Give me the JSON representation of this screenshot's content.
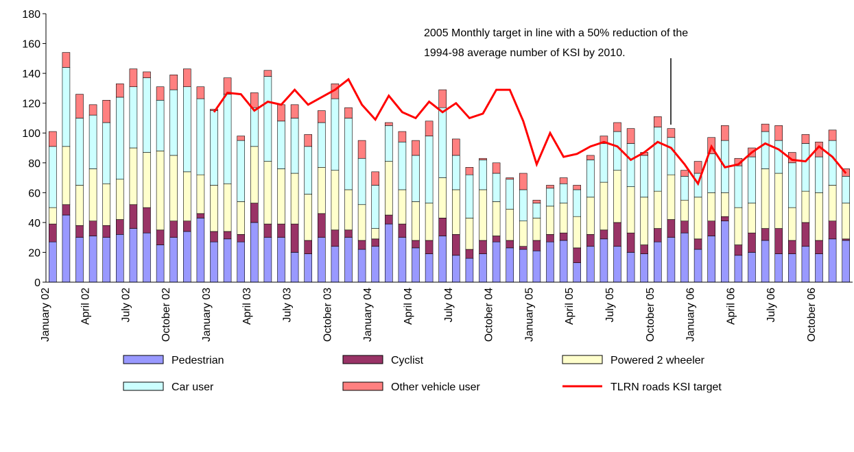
{
  "chart_data": {
    "type": "bar",
    "stacked": true,
    "annotation": [
      "2005 Monthly target in line with a 50% reduction of the",
      "1994-98 average number of  KSI by 2010."
    ],
    "categories": [
      "January 02",
      null,
      null,
      "April 02",
      null,
      null,
      "July 02",
      null,
      null,
      "October 02",
      null,
      null,
      "January 03",
      null,
      null,
      "April 03",
      null,
      null,
      "July 03",
      null,
      null,
      "October 03",
      null,
      null,
      "January 04",
      null,
      null,
      "April 04",
      null,
      null,
      "July 04",
      null,
      null,
      "October 04",
      null,
      null,
      "January 05",
      null,
      null,
      "April 05",
      null,
      null,
      "July 05",
      null,
      null,
      "October 05",
      null,
      null,
      "January 06",
      null,
      null,
      "April 06",
      null,
      null,
      "July 06",
      null,
      null,
      "October 06",
      null,
      null
    ],
    "series": [
      {
        "name": "Pedestrian",
        "color": "#9999ff",
        "values": [
          27,
          45,
          30,
          31,
          30,
          32,
          36,
          33,
          25,
          30,
          34,
          43,
          27,
          29,
          27,
          40,
          30,
          30,
          20,
          19,
          30,
          24,
          30,
          22,
          24,
          39,
          30,
          23,
          19,
          31,
          18,
          16,
          19,
          27,
          23,
          22,
          21,
          27,
          28,
          13,
          24,
          29,
          24,
          20,
          19,
          27,
          30,
          33,
          22,
          31,
          41,
          18,
          20,
          28,
          19,
          19,
          24,
          19,
          29,
          28
        ]
      },
      {
        "name": "Cyclist",
        "color": "#993366",
        "values": [
          12,
          7,
          8,
          10,
          8,
          10,
          16,
          17,
          10,
          11,
          7,
          3,
          7,
          5,
          5,
          13,
          9,
          9,
          19,
          9,
          16,
          11,
          5,
          6,
          5,
          6,
          9,
          5,
          9,
          12,
          14,
          6,
          9,
          4,
          5,
          2,
          7,
          5,
          5,
          10,
          8,
          6,
          16,
          13,
          6,
          9,
          12,
          8,
          7,
          10,
          3,
          7,
          13,
          8,
          17,
          9,
          16,
          9,
          12,
          1
        ]
      },
      {
        "name": "Powered 2 wheeler",
        "color": "#ffffcc",
        "values": [
          11,
          39,
          27,
          35,
          28,
          27,
          38,
          37,
          53,
          44,
          33,
          26,
          31,
          32,
          22,
          38,
          42,
          37,
          34,
          31,
          31,
          40,
          27,
          24,
          7,
          36,
          23,
          26,
          25,
          27,
          30,
          21,
          34,
          23,
          21,
          17,
          15,
          19,
          20,
          21,
          25,
          32,
          35,
          31,
          32,
          25,
          30,
          14,
          28,
          19,
          16,
          25,
          20,
          40,
          37,
          22,
          21,
          32,
          24,
          24
        ]
      },
      {
        "name": "Car user",
        "color": "#ccffff",
        "values": [
          41,
          53,
          45,
          36,
          41,
          55,
          41,
          50,
          34,
          44,
          57,
          51,
          50,
          60,
          41,
          26,
          57,
          32,
          37,
          32,
          30,
          48,
          48,
          31,
          29,
          24,
          32,
          31,
          45,
          47,
          23,
          29,
          20,
          19,
          20,
          21,
          10,
          12,
          13,
          18,
          25,
          26,
          26,
          29,
          28,
          43,
          25,
          16,
          16,
          26,
          35,
          28,
          31,
          25,
          22,
          30,
          32,
          24,
          30,
          18
        ]
      },
      {
        "name": "Other vehicle user",
        "color": "#ff8080",
        "values": [
          10,
          10,
          16,
          7,
          15,
          9,
          12,
          4,
          9,
          10,
          12,
          8,
          1,
          11,
          3,
          10,
          4,
          11,
          9,
          8,
          8,
          10,
          7,
          12,
          9,
          2,
          7,
          10,
          10,
          12,
          11,
          5,
          1,
          7,
          1,
          11,
          2,
          2,
          4,
          3,
          3,
          5,
          6,
          10,
          2,
          7,
          6,
          4,
          8,
          11,
          10,
          5,
          6,
          5,
          10,
          7,
          6,
          10,
          7,
          5
        ]
      },
      {
        "name": "TLRN roads KSI target",
        "type": "line",
        "color": "#ff0000",
        "values": [
          null,
          null,
          null,
          null,
          null,
          null,
          null,
          null,
          null,
          null,
          null,
          null,
          114,
          127,
          126,
          115,
          121,
          119,
          129,
          119,
          124,
          129,
          136,
          119,
          109,
          125,
          114,
          110,
          121,
          114,
          120,
          110,
          113,
          129,
          129,
          108,
          79,
          100,
          84,
          86,
          91,
          94,
          91,
          82,
          87,
          94,
          90,
          79,
          66,
          91,
          77,
          79,
          87,
          93,
          89,
          82,
          81,
          91,
          84,
          73
        ]
      }
    ],
    "ylim": [
      0,
      180
    ],
    "yticks": [
      0,
      20,
      40,
      60,
      80,
      100,
      120,
      140,
      160,
      180
    ],
    "grid": false
  }
}
